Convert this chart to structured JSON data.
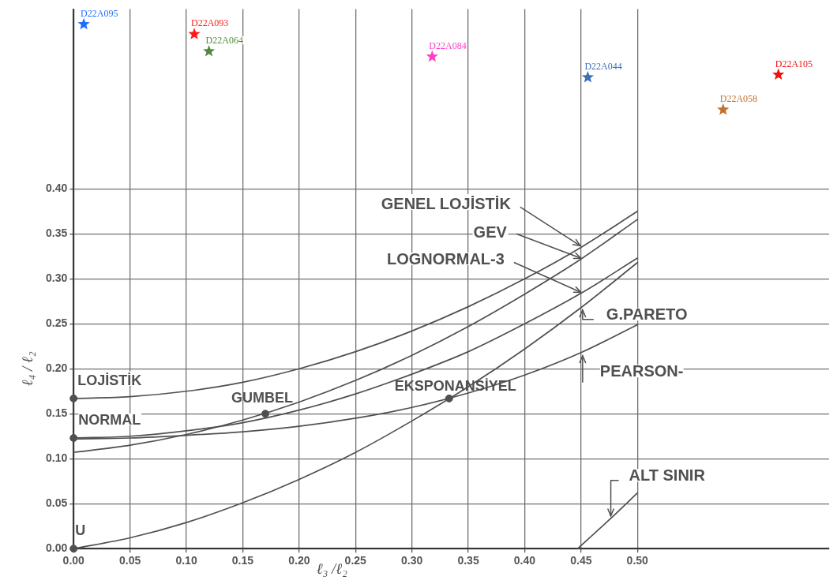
{
  "chart_data": {
    "type": "line",
    "xlabel": "ℓ₃ /ℓ₂",
    "ylabel": "ℓ₄ / ℓ₂",
    "xlim": [
      0,
      0.67
    ],
    "ylim": [
      0,
      0.6
    ],
    "xticks": [
      {
        "value": 0,
        "label": "0.00"
      },
      0.05,
      {
        "value": 0.1,
        "label": "0.10"
      },
      0.15,
      {
        "value": 0.2,
        "label": "0.20"
      },
      0.25,
      {
        "value": 0.3,
        "label": "0.30"
      },
      0.35,
      {
        "value": 0.4,
        "label": "0.40"
      },
      0.45,
      {
        "value": 0.5,
        "label": "0.50"
      }
    ],
    "yticks": [
      {
        "value": 0,
        "label": "0.00"
      },
      0.05,
      {
        "value": 0.1,
        "label": "0.10"
      },
      0.15,
      {
        "value": 0.2,
        "label": "0.20"
      },
      0.25,
      {
        "value": 0.3,
        "label": "0.30"
      },
      0.35,
      {
        "value": 0.4,
        "label": "0.40"
      }
    ],
    "grid": true,
    "series": [
      {
        "marker": "none",
        "color": "#505050",
        "x": [
          0,
          0.05,
          0.1,
          0.15,
          0.2,
          0.25,
          0.3,
          0.35,
          0.4,
          0.45,
          0.5
        ],
        "values": [
          0.167,
          0.169,
          0.175,
          0.185,
          0.2,
          0.219,
          0.242,
          0.269,
          0.3,
          0.335,
          0.375
        ]
      },
      {
        "marker": "none",
        "color": "#505050",
        "x": [
          0,
          0.05,
          0.1,
          0.15,
          0.2,
          0.25,
          0.3,
          0.35,
          0.4,
          0.45,
          0.5
        ],
        "values": [
          0.107,
          0.115,
          0.127,
          0.143,
          0.163,
          0.187,
          0.215,
          0.247,
          0.283,
          0.322,
          0.366
        ]
      },
      {
        "marker": "none",
        "color": "#505050",
        "x": [
          0,
          0.05,
          0.1,
          0.15,
          0.2,
          0.25,
          0.3,
          0.35,
          0.4,
          0.45,
          0.5
        ],
        "values": [
          0.123,
          0.125,
          0.131,
          0.14,
          0.154,
          0.172,
          0.194,
          0.219,
          0.25,
          0.284,
          0.323
        ]
      },
      {
        "marker": "none",
        "color": "#505050",
        "x": [
          0,
          0.05,
          0.1,
          0.15,
          0.2,
          0.25,
          0.3,
          0.35,
          0.4,
          0.45,
          0.5
        ],
        "values": [
          0,
          0.012,
          0.029,
          0.051,
          0.077,
          0.107,
          0.142,
          0.18,
          0.222,
          0.268,
          0.318
        ]
      },
      {
        "marker": "none",
        "color": "#505050",
        "x": [
          0,
          0.05,
          0.1,
          0.15,
          0.2,
          0.25,
          0.3,
          0.35,
          0.4,
          0.45,
          0.5
        ],
        "values": [
          0.122,
          0.123,
          0.126,
          0.13,
          0.136,
          0.145,
          0.157,
          0.173,
          0.193,
          0.218,
          0.249
        ]
      },
      {
        "marker": "none",
        "color": "#505050",
        "x": [
          0.447,
          0.475,
          0.5
        ],
        "values": [
          0,
          0.032,
          0.062
        ]
      },
      {
        "type": "scatter",
        "marker": "circle",
        "color": "#505050",
        "x": [
          0,
          0,
          0,
          0.17,
          0.333
        ],
        "values": [
          0.167,
          0.123,
          0,
          0.15,
          0.167
        ]
      },
      {
        "name": "D22A095",
        "type": "scatter",
        "marker": "star",
        "color": "#1f6fff",
        "x": [
          0.009
        ],
        "values": [
          0.583
        ]
      },
      {
        "name": "D22A093",
        "type": "scatter",
        "marker": "star",
        "color": "#ff1a1a",
        "x": [
          0.107
        ],
        "values": [
          0.572
        ]
      },
      {
        "name": "D22A064",
        "type": "scatter",
        "marker": "star",
        "color": "#4f8a3c",
        "x": [
          0.12
        ],
        "values": [
          0.553
        ]
      },
      {
        "name": "D22A084",
        "type": "scatter",
        "marker": "star",
        "color": "#ff3fc8",
        "x": [
          0.318
        ],
        "values": [
          0.547
        ]
      },
      {
        "name": "D22A044",
        "type": "scatter",
        "marker": "star",
        "color": "#3b6fb6",
        "x": [
          0.456
        ],
        "values": [
          0.524
        ]
      },
      {
        "name": "D22A105",
        "type": "scatter",
        "marker": "star",
        "color": "#f01010",
        "x": [
          0.625
        ],
        "values": [
          0.527
        ]
      },
      {
        "name": "D22A058",
        "type": "scatter",
        "marker": "star",
        "color": "#c0702f",
        "x": [
          0.576
        ],
        "values": [
          0.488
        ]
      }
    ],
    "annotations": [
      {
        "text": "GENEL LOJİSTİK",
        "x": 0.45,
        "y": 0.335
      },
      {
        "text": "GEV",
        "x": 0.45,
        "y": 0.322
      },
      {
        "text": "LOGNORMAL-3",
        "x": 0.45,
        "y": 0.284
      },
      {
        "text": "G.PARETO",
        "x": 0.45,
        "y": 0.268
      },
      {
        "text": "PEARSON-",
        "x": 0.45,
        "y": 0.218
      },
      {
        "text": "ALT SINIR",
        "x": 0.475,
        "y": 0.032
      },
      {
        "text": "LOJİSTİK",
        "x": 0,
        "y": 0.167
      },
      {
        "text": "NORMAL",
        "x": 0,
        "y": 0.123
      },
      {
        "text": "U",
        "x": 0,
        "y": 0
      },
      {
        "text": "GUMBEL",
        "x": 0.17,
        "y": 0.15
      },
      {
        "text": "EKSPONANSİYEL",
        "x": 0.333,
        "y": 0.167
      }
    ]
  }
}
